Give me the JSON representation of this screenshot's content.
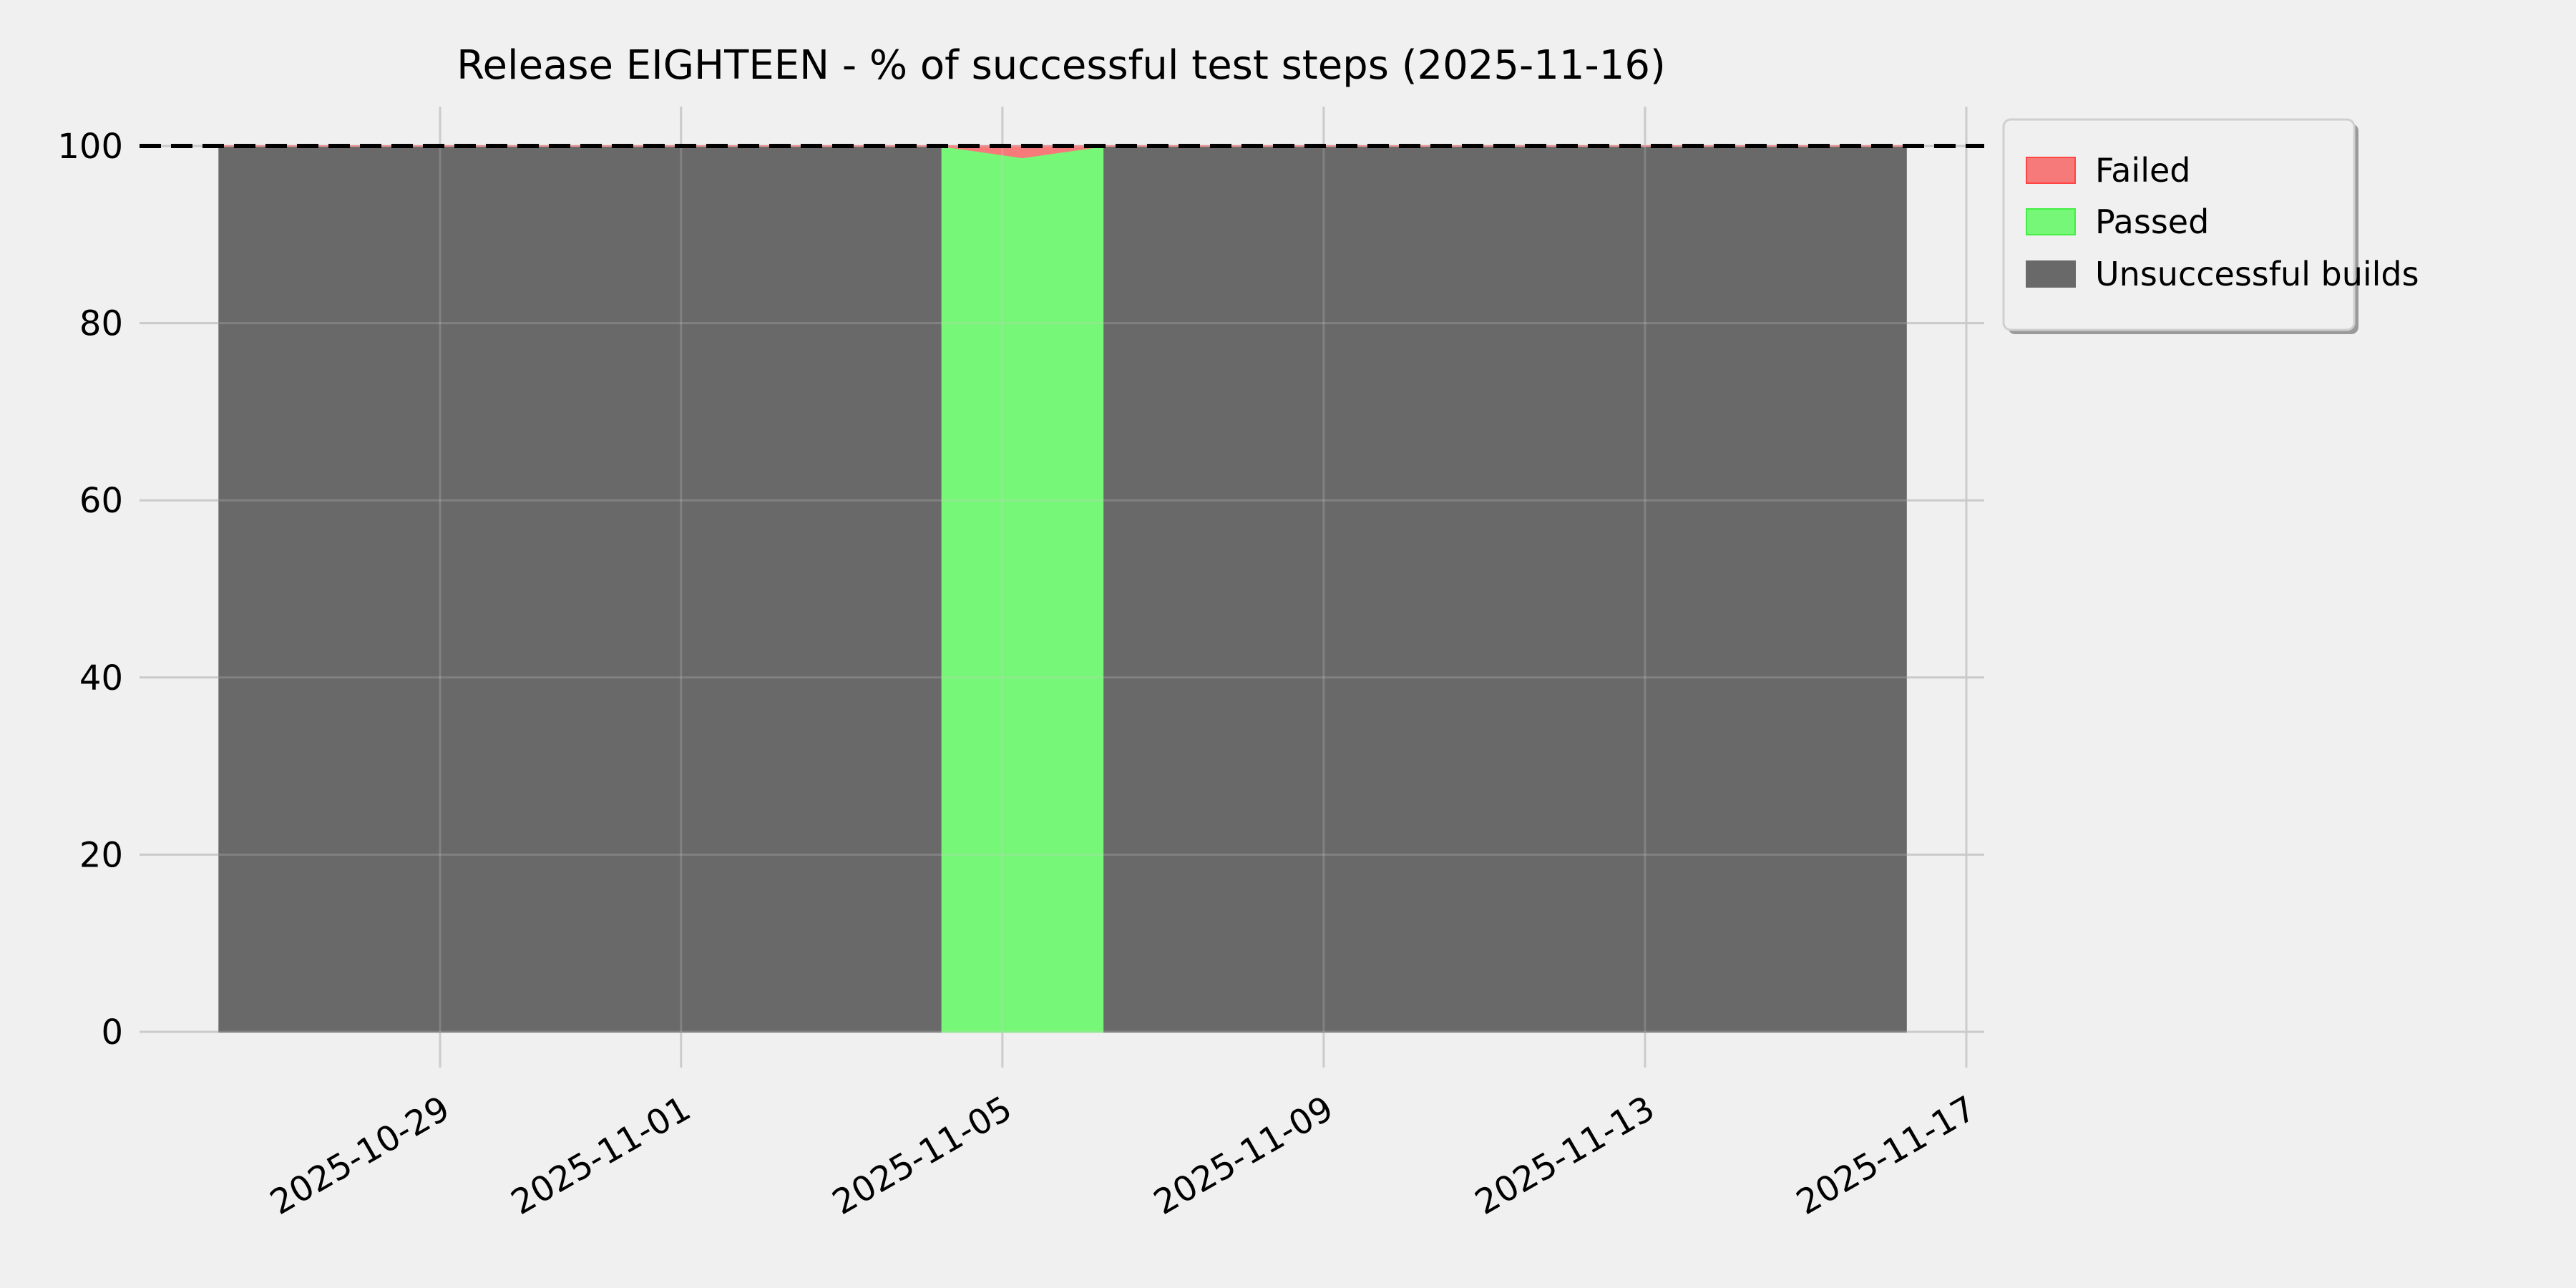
{
  "chart_data": {
    "type": "area",
    "stacked": true,
    "title": "Release EIGHTEEN - % of successful test steps (2025-11-16)",
    "xlabel": "",
    "ylabel": "",
    "xlim": [
      "2025-10-25 00:00",
      "2025-11-17 06:00"
    ],
    "ylim": [
      0,
      104
    ],
    "x_ticks": [
      "2025-10-29",
      "2025-11-01",
      "2025-11-05",
      "2025-11-09",
      "2025-11-13",
      "2025-11-17"
    ],
    "y_ticks": [
      0,
      20,
      40,
      60,
      80,
      100
    ],
    "grid": true,
    "legend_position": "outside-top-right",
    "reference_line": {
      "y": 100,
      "style": "dashed",
      "color": "#000000"
    },
    "x": [
      "2025-10-26 06:00",
      "2025-11-04 06:00",
      "2025-11-04 06:00",
      "2025-11-05 06:00",
      "2025-11-06 06:00",
      "2025-11-06 06:00",
      "2025-11-16 06:00"
    ],
    "series": [
      {
        "name": "Unsuccessful builds",
        "color": "#696969",
        "values": [
          100,
          100,
          0,
          0,
          0,
          100,
          100
        ]
      },
      {
        "name": "Passed",
        "color": "#77f777",
        "values": [
          0,
          0,
          100,
          98.7,
          100,
          0,
          0
        ]
      },
      {
        "name": "Failed",
        "color": "#f77a7a",
        "values": [
          0,
          0,
          0,
          1.3,
          0,
          0,
          0
        ]
      }
    ],
    "legend": [
      "Failed",
      "Passed",
      "Unsuccessful builds"
    ]
  }
}
